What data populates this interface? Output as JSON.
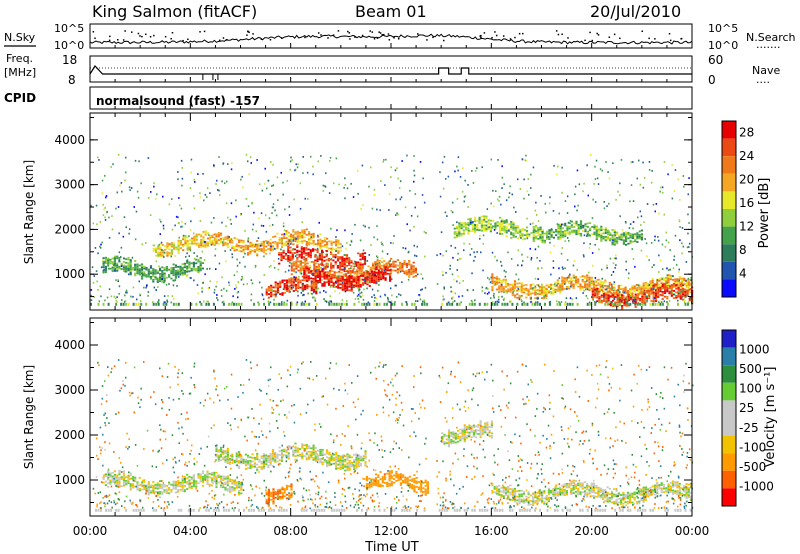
{
  "header": {
    "station": "King Salmon (fitACF)",
    "beam": "Beam 01",
    "date": "20/Jul/2010"
  },
  "left_labels": {
    "nsky": "N.Sky",
    "freq_line1": "Freq.",
    "freq_line2": "[MHz]",
    "cpid": "CPID"
  },
  "right_labels": {
    "nsearch": "N.Search",
    "nave": "Nave"
  },
  "nsky_ticks": [
    "10^5",
    "10^0"
  ],
  "nsearch_ticks": [
    "10^5",
    "10^0"
  ],
  "freq_ticks": [
    "18",
    "8"
  ],
  "nave_ticks": [
    "60",
    "0"
  ],
  "cpid_text": "normalsound (fast) -157",
  "colors": {
    "power": [
      "#0a0aff",
      "#2255b0",
      "#2e7d5a",
      "#44a34a",
      "#8fcf3c",
      "#e8e82a",
      "#f5a623",
      "#f07a1a",
      "#ec4a14",
      "#e60000"
    ],
    "velocity": [
      "#ff0000",
      "#ff6000",
      "#ff9a00",
      "#f2c200",
      "#c8c8c8",
      "#c8c8c8",
      "#66cc33",
      "#2d8f3e",
      "#2a7fa8",
      "#2020c8"
    ]
  },
  "chart_data": [
    {
      "type": "heatmap",
      "name": "power",
      "x_range": [
        "00:00",
        "00:00"
      ],
      "x_ticks": [
        "00:00",
        "04:00",
        "08:00",
        "12:00",
        "16:00",
        "20:00",
        "00:00"
      ],
      "ylabel": "Slant Range [km]",
      "yticks": [
        1000,
        2000,
        3000,
        4000
      ],
      "ylim": [
        200,
        4600
      ],
      "colorbar_label": "Power [dB]",
      "colorbar_ticks": [
        4,
        8,
        12,
        16,
        20,
        24,
        28
      ],
      "colorbar_range": [
        0,
        30
      ],
      "features": [
        {
          "t_start": 0.5,
          "t_end": 4.5,
          "range_km": 1100,
          "power_db": 10
        },
        {
          "t_start": 2.5,
          "t_end": 5.0,
          "range_km": 1650,
          "power_db": 18
        },
        {
          "t_start": 5.0,
          "t_end": 10.0,
          "range_km": 1700,
          "power_db": 20
        },
        {
          "t_start": 7.5,
          "t_end": 11.0,
          "range_km": 1350,
          "power_db": 26
        },
        {
          "t_start": 8.0,
          "t_end": 13.0,
          "range_km": 1050,
          "power_db": 22
        },
        {
          "t_start": 8.5,
          "t_end": 12.0,
          "range_km": 900,
          "power_db": 28
        },
        {
          "t_start": 7.0,
          "t_end": 9.0,
          "range_km": 650,
          "power_db": 26
        },
        {
          "t_start": 14.5,
          "t_end": 18.0,
          "range_km": 2000,
          "power_db": 14
        },
        {
          "t_start": 18.0,
          "t_end": 22.0,
          "range_km": 1900,
          "power_db": 12
        },
        {
          "t_start": 16.0,
          "t_end": 24.0,
          "range_km": 700,
          "power_db": 20
        },
        {
          "t_start": 20.0,
          "t_end": 24.0,
          "range_km": 500,
          "power_db": 26
        }
      ]
    },
    {
      "type": "heatmap",
      "name": "velocity",
      "x_ticks": [
        "00:00",
        "04:00",
        "08:00",
        "12:00",
        "16:00",
        "20:00",
        "00:00"
      ],
      "xlabel": "Time UT",
      "ylabel": "Slant Range [km]",
      "yticks": [
        1000,
        2000,
        3000,
        4000
      ],
      "ylim": [
        200,
        4600
      ],
      "colorbar_label": "Velocity [m s⁻¹]",
      "colorbar_ticks": [
        1000,
        500,
        100,
        25,
        -25,
        -100,
        -500,
        -1000
      ],
      "features": [
        {
          "t_start": 0.5,
          "t_end": 6.0,
          "range_km": 900,
          "velocity": 0
        },
        {
          "t_start": 5.0,
          "t_end": 11.0,
          "range_km": 1500,
          "velocity": 0
        },
        {
          "t_start": 11.0,
          "t_end": 13.5,
          "range_km": 900,
          "velocity": -300
        },
        {
          "t_start": 7.0,
          "t_end": 8.0,
          "range_km": 650,
          "velocity": -500
        },
        {
          "t_start": 14.0,
          "t_end": 16.0,
          "range_km": 2000,
          "velocity": 0
        },
        {
          "t_start": 16.0,
          "t_end": 24.0,
          "range_km": 700,
          "velocity": 0
        }
      ]
    }
  ]
}
